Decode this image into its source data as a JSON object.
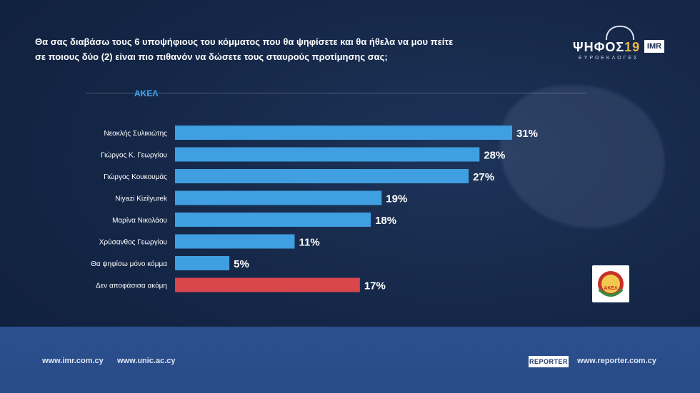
{
  "question": "Θα σας διαβάσω τους 6 υποψήφιους του κόμματος που θα ψηφίσετε και θα ήθελα να μου πείτε σε ποιους δύο (2) είναι πιο πιθανόν να δώσετε τους σταυρούς προτίμησης σας;",
  "logo": {
    "main": "ΨΗΦΟΣ",
    "num": "19",
    "badge": "IMR",
    "sub": "ΕΥΡΩΕΚΛΟΓΕΣ"
  },
  "party_label": "ΑΚΕΛ",
  "akel_logo_text": "ΑΚΕΛ",
  "colors": {
    "bar": "#3f9fe0",
    "highlight": "#d9474c",
    "label": "#ffffff"
  },
  "chart_data": {
    "type": "bar",
    "orientation": "horizontal",
    "categories": [
      "Νεοκλής Συλικιώτης",
      "Γιώργος Κ. Γεωργίου",
      "Γιώργος Κουκουμάς",
      "Niyazi Kizilyurek",
      "Μαρίνα Νικολάου",
      "Χρύσανθος Γεωργίου",
      "Θα ψηφίσω μόνο κόμμα",
      "Δεν αποφάσισα ακόμη"
    ],
    "values": [
      31,
      28,
      27,
      19,
      18,
      11,
      5,
      17
    ],
    "value_labels": [
      "31%",
      "28%",
      "27%",
      "19%",
      "18%",
      "11%",
      "5%",
      "17%"
    ],
    "highlight": [
      false,
      false,
      false,
      false,
      false,
      false,
      false,
      true
    ],
    "xlim": [
      0,
      31
    ],
    "grid": false,
    "title": "ΑΚΕΛ"
  },
  "footer": {
    "link1": "www.imr.com.cy",
    "link2": "www.unic.ac.cy",
    "reporter": "REPORTER",
    "link3": "www.reporter.com.cy"
  }
}
